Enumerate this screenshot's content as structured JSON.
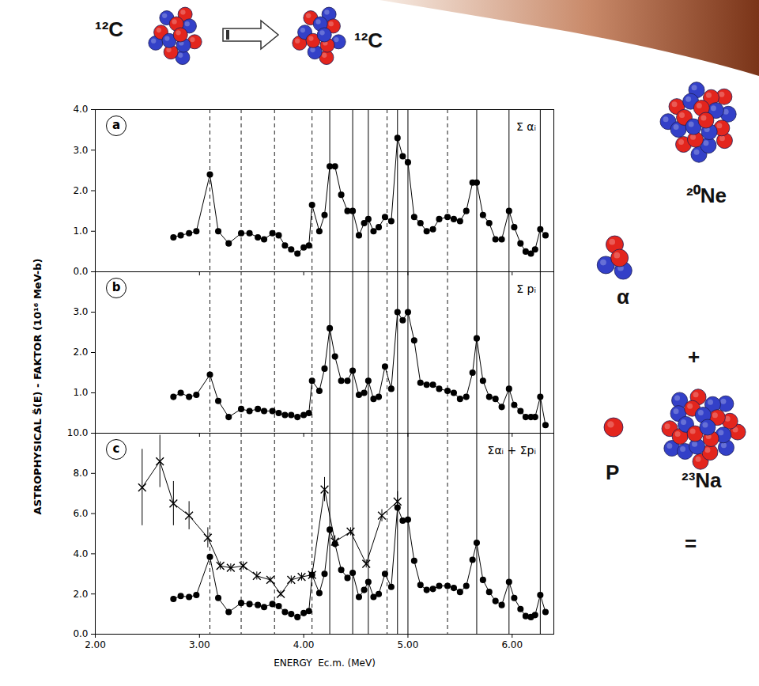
{
  "ylabel": "ASTROPHYSICAL S̃(E) - FAKTOR (10¹⁶ MeV-b)",
  "chart_data": [
    {
      "type": "line",
      "panel": "a",
      "x": [
        2.75,
        2.82,
        2.9,
        2.97,
        3.1,
        3.18,
        3.28,
        3.4,
        3.48,
        3.56,
        3.62,
        3.7,
        3.76,
        3.82,
        3.88,
        3.94,
        4.0,
        4.05,
        4.08,
        4.15,
        4.2,
        4.25,
        4.3,
        4.36,
        4.42,
        4.47,
        4.53,
        4.58,
        4.62,
        4.67,
        4.72,
        4.78,
        4.84,
        4.9,
        4.95,
        5.0,
        5.06,
        5.12,
        5.18,
        5.24,
        5.3,
        5.38,
        5.44,
        5.5,
        5.56,
        5.62,
        5.66,
        5.72,
        5.78,
        5.84,
        5.9,
        5.97,
        6.02,
        6.08,
        6.13,
        6.18,
        6.22,
        6.27,
        6.32
      ],
      "series": [
        {
          "name": "Σ αᵢ",
          "color": "#000000",
          "marker": "circle",
          "line_style": "solid",
          "values": [
            0.85,
            0.9,
            0.95,
            1.0,
            2.4,
            1.0,
            0.7,
            0.95,
            0.95,
            0.85,
            0.8,
            0.95,
            0.9,
            0.65,
            0.55,
            0.45,
            0.6,
            0.65,
            1.65,
            1.0,
            1.4,
            2.6,
            2.6,
            1.9,
            1.5,
            1.5,
            0.9,
            1.2,
            1.3,
            1.0,
            1.1,
            1.35,
            1.25,
            3.3,
            2.85,
            2.7,
            1.35,
            1.2,
            1.0,
            1.05,
            1.3,
            1.35,
            1.3,
            1.25,
            1.5,
            2.2,
            2.2,
            1.4,
            1.2,
            0.8,
            0.8,
            1.5,
            1.1,
            0.7,
            0.5,
            0.45,
            0.55,
            1.05,
            0.9
          ]
        }
      ],
      "xlim": [
        2.0,
        6.4
      ],
      "xticks": [
        {
          "value": 2,
          "label": "2.00"
        },
        {
          "value": 3,
          "label": "3.00"
        },
        {
          "value": 4,
          "label": "4.00"
        },
        {
          "value": 5,
          "label": "5.00"
        },
        {
          "value": 6,
          "label": "6.00"
        }
      ],
      "ylim": [
        0,
        4
      ],
      "yticks": [
        {
          "value": 0,
          "label": "0.0"
        },
        {
          "value": 1,
          "label": "1.0"
        },
        {
          "value": 2,
          "label": "2.0"
        },
        {
          "value": 3,
          "label": "3.0"
        },
        {
          "value": 4,
          "label": "4.0"
        }
      ],
      "tick_labels": "y",
      "legend": "top-right",
      "resonances_dashed": [
        3.1,
        3.4,
        3.72,
        4.08,
        4.8,
        5.38
      ],
      "resonances_solid": [
        4.25,
        4.47,
        4.62,
        4.9,
        5.0,
        5.66,
        5.97,
        6.27
      ]
    },
    {
      "type": "line",
      "panel": "b",
      "x": [
        2.75,
        2.82,
        2.9,
        2.97,
        3.1,
        3.18,
        3.28,
        3.4,
        3.48,
        3.56,
        3.62,
        3.7,
        3.76,
        3.82,
        3.88,
        3.94,
        4.0,
        4.05,
        4.08,
        4.15,
        4.2,
        4.25,
        4.3,
        4.36,
        4.42,
        4.47,
        4.53,
        4.58,
        4.62,
        4.67,
        4.72,
        4.78,
        4.84,
        4.9,
        4.95,
        5.0,
        5.06,
        5.12,
        5.18,
        5.24,
        5.3,
        5.38,
        5.44,
        5.5,
        5.56,
        5.62,
        5.66,
        5.72,
        5.78,
        5.84,
        5.9,
        5.97,
        6.02,
        6.08,
        6.13,
        6.18,
        6.22,
        6.27,
        6.32
      ],
      "series": [
        {
          "name": "Σ pᵢ",
          "color": "#000000",
          "marker": "circle",
          "line_style": "solid",
          "values": [
            0.9,
            1.0,
            0.9,
            0.95,
            1.45,
            0.8,
            0.4,
            0.6,
            0.55,
            0.6,
            0.55,
            0.55,
            0.5,
            0.45,
            0.45,
            0.4,
            0.45,
            0.5,
            1.3,
            1.05,
            1.6,
            2.6,
            1.9,
            1.3,
            1.3,
            1.55,
            0.95,
            1.0,
            1.3,
            0.85,
            0.9,
            1.65,
            1.1,
            3.0,
            2.8,
            3.0,
            2.3,
            1.25,
            1.2,
            1.2,
            1.1,
            1.05,
            1.0,
            0.85,
            0.9,
            1.5,
            2.35,
            1.3,
            0.9,
            0.85,
            0.65,
            1.1,
            0.7,
            0.55,
            0.4,
            0.4,
            0.4,
            0.9,
            0.2
          ]
        }
      ],
      "xlim": [
        2.0,
        6.4
      ],
      "xticks": [
        {
          "value": 2,
          "label": "2.00"
        },
        {
          "value": 3,
          "label": "3.00"
        },
        {
          "value": 4,
          "label": "4.00"
        },
        {
          "value": 5,
          "label": "5.00"
        },
        {
          "value": 6,
          "label": "6.00"
        }
      ],
      "ylim": [
        0,
        4
      ],
      "yticks": [
        {
          "value": 1,
          "label": "1.0"
        },
        {
          "value": 2,
          "label": "2.0"
        },
        {
          "value": 3,
          "label": "3.0"
        }
      ],
      "tick_labels": "y",
      "legend": "top-right",
      "resonances_dashed": [
        3.1,
        3.4,
        3.72,
        4.08,
        4.8,
        5.38
      ],
      "resonances_solid": [
        4.25,
        4.47,
        4.62,
        4.9,
        5.0,
        5.66,
        5.97,
        6.27
      ]
    },
    {
      "type": "line",
      "panel": "c",
      "xlabel": "ENERGY  Ec.m. (MeV)",
      "series": [
        {
          "name": "Σαᵢ + Σpᵢ",
          "color": "#000000",
          "marker": "circle",
          "line_style": "solid",
          "x": [
            2.75,
            2.82,
            2.9,
            2.97,
            3.1,
            3.18,
            3.28,
            3.4,
            3.48,
            3.56,
            3.62,
            3.7,
            3.76,
            3.82,
            3.88,
            3.94,
            4.0,
            4.05,
            4.08,
            4.15,
            4.2,
            4.25,
            4.3,
            4.36,
            4.42,
            4.47,
            4.53,
            4.58,
            4.62,
            4.67,
            4.72,
            4.78,
            4.84,
            4.9,
            4.95,
            5.0,
            5.06,
            5.12,
            5.18,
            5.24,
            5.3,
            5.38,
            5.44,
            5.5,
            5.56,
            5.62,
            5.66,
            5.72,
            5.78,
            5.84,
            5.9,
            5.97,
            6.02,
            6.08,
            6.13,
            6.18,
            6.22,
            6.27,
            6.32
          ],
          "values": [
            1.75,
            1.9,
            1.85,
            1.95,
            3.85,
            1.8,
            1.1,
            1.55,
            1.5,
            1.45,
            1.35,
            1.5,
            1.4,
            1.1,
            1.0,
            0.85,
            1.05,
            1.15,
            2.95,
            2.05,
            3.0,
            5.2,
            4.5,
            3.2,
            2.8,
            3.05,
            1.85,
            2.2,
            2.6,
            1.85,
            2.0,
            3.0,
            2.35,
            6.3,
            5.65,
            5.7,
            3.65,
            2.45,
            2.2,
            2.25,
            2.4,
            2.4,
            2.3,
            2.1,
            2.4,
            3.7,
            4.55,
            2.7,
            2.1,
            1.65,
            1.45,
            2.6,
            1.8,
            1.25,
            0.9,
            0.85,
            0.95,
            1.95,
            1.1
          ]
        },
        {
          "color": "#000000",
          "marker": "x",
          "line_style": "solid",
          "x": [
            2.45,
            2.62,
            2.75,
            2.9,
            3.08,
            3.2,
            3.3,
            3.42,
            3.55,
            3.68,
            3.78,
            3.88,
            3.98,
            4.08,
            4.2,
            4.3,
            4.45,
            4.6,
            4.75,
            4.9
          ],
          "values": [
            7.3,
            8.6,
            6.5,
            5.9,
            4.8,
            3.4,
            3.3,
            3.4,
            2.9,
            2.7,
            2.0,
            2.7,
            2.85,
            2.95,
            7.2,
            4.6,
            5.1,
            3.5,
            5.9,
            6.6
          ],
          "errors": [
            1.9,
            1.3,
            1.1,
            0.7,
            0.5,
            0.2,
            0.2,
            0.2,
            0.2,
            0.15,
            0.15,
            0.2,
            0.2,
            0.2,
            0.6,
            0.3,
            0.2,
            0.2,
            0.3,
            0.5
          ]
        }
      ],
      "xlim": [
        2.0,
        6.4
      ],
      "xticks": [
        {
          "value": 2,
          "label": "2.00"
        },
        {
          "value": 3,
          "label": "3.00"
        },
        {
          "value": 4,
          "label": "4.00"
        },
        {
          "value": 5,
          "label": "5.00"
        },
        {
          "value": 6,
          "label": "6.00"
        }
      ],
      "ylim": [
        0,
        10
      ],
      "yticks": [
        {
          "value": 0,
          "label": "0.0"
        },
        {
          "value": 2,
          "label": "2.0"
        },
        {
          "value": 4,
          "label": "4.0"
        },
        {
          "value": 6,
          "label": "6.0"
        },
        {
          "value": 8,
          "label": "8.0"
        },
        {
          "value": 10,
          "label": "10.0"
        }
      ],
      "legend": "top-right",
      "resonances_dashed": [
        3.1,
        3.4,
        3.72,
        4.08,
        4.8,
        5.38
      ],
      "resonances_solid": [
        4.25,
        4.47,
        4.62,
        4.9,
        5.0,
        5.66,
        5.97,
        6.27
      ]
    }
  ],
  "reaction": {
    "initial": [
      "¹²C",
      "¹²C"
    ],
    "channels": [
      {
        "light": "α",
        "heavy": "²⁰Ne"
      },
      {
        "light": "P",
        "heavy": "²³Na"
      }
    ],
    "operators": [
      "+",
      "="
    ]
  }
}
